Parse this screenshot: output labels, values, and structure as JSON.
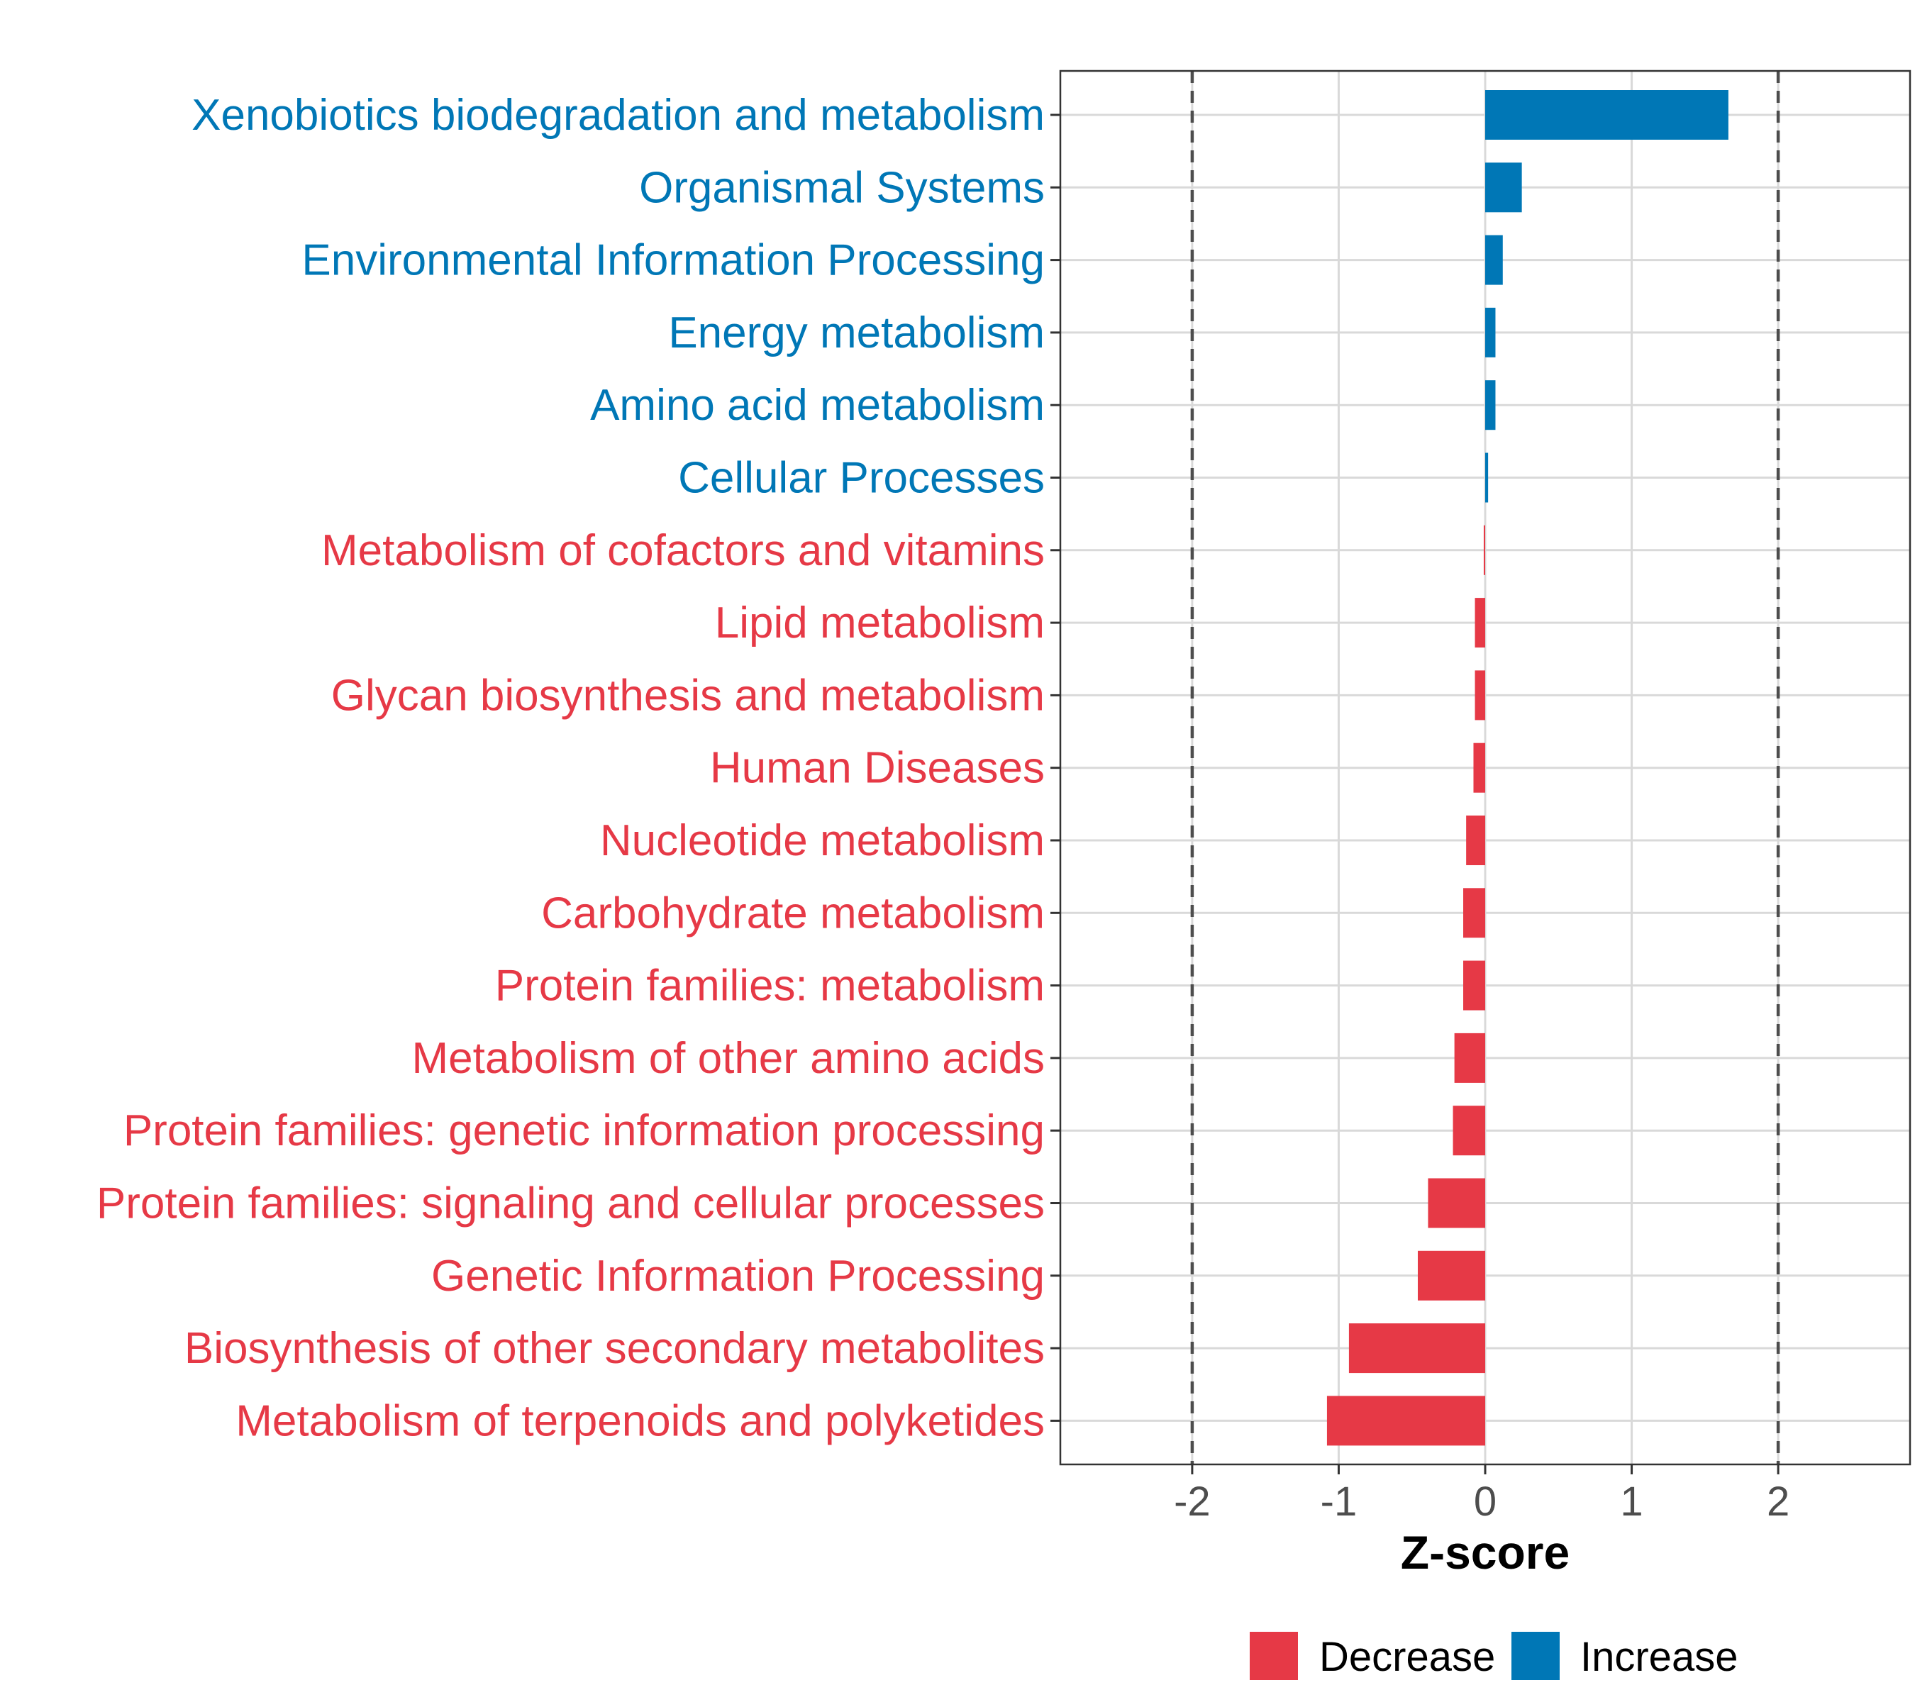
{
  "colors": {
    "decrease": "#E63946",
    "increase": "#0077B6",
    "grid": "#d9d9d9",
    "reference_line": "#4d4d4d",
    "panel_border": "#333333"
  },
  "chart_data": {
    "type": "bar",
    "orientation": "horizontal",
    "categories": [
      "Xenobiotics biodegradation and metabolism",
      "Organismal Systems",
      "Environmental Information Processing",
      "Energy metabolism",
      "Amino acid metabolism",
      "Cellular Processes",
      "Metabolism of cofactors and vitamins",
      "Lipid metabolism",
      "Glycan biosynthesis and metabolism",
      "Human Diseases",
      "Nucleotide metabolism",
      "Carbohydrate metabolism",
      "Protein families: metabolism",
      "Metabolism of other amino acids",
      "Protein families: genetic information processing",
      "Protein families: signaling and cellular processes",
      "Genetic Information Processing",
      "Biosynthesis of other secondary metabolites",
      "Metabolism of terpenoids and polyketides"
    ],
    "values": [
      1.66,
      0.25,
      0.12,
      0.07,
      0.07,
      0.02,
      -0.01,
      -0.07,
      -0.07,
      -0.08,
      -0.13,
      -0.15,
      -0.15,
      -0.21,
      -0.22,
      -0.39,
      -0.46,
      -0.93,
      -1.08
    ],
    "groups": [
      "Increase",
      "Increase",
      "Increase",
      "Increase",
      "Increase",
      "Increase",
      "Decrease",
      "Decrease",
      "Decrease",
      "Decrease",
      "Decrease",
      "Decrease",
      "Decrease",
      "Decrease",
      "Decrease",
      "Decrease",
      "Decrease",
      "Decrease",
      "Decrease"
    ],
    "xlabel": "Z-score",
    "ylabel": "",
    "xlim": [
      -2.9,
      2.9
    ],
    "xticks": [
      -2,
      -1,
      0,
      1,
      2
    ],
    "xtick_labels": [
      "-2",
      "-1",
      "0",
      "1",
      "2"
    ],
    "reference_lines": [
      -2,
      2
    ],
    "grid": true,
    "legend": {
      "placement": "bottom",
      "entries": [
        {
          "label": "Decrease",
          "group": "Decrease"
        },
        {
          "label": "Increase",
          "group": "Increase"
        }
      ]
    }
  }
}
